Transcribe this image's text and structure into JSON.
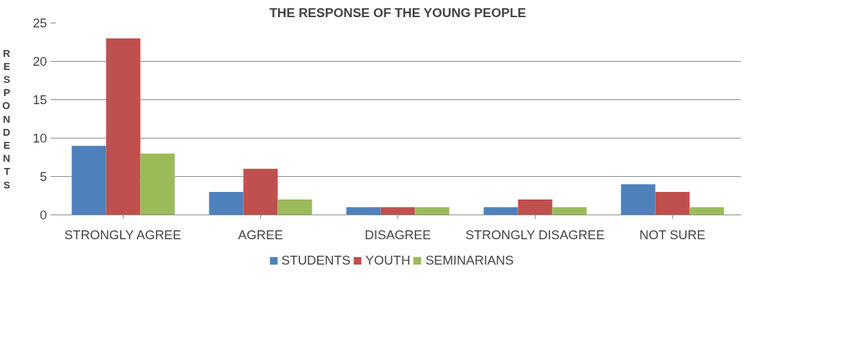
{
  "chart_data": {
    "type": "bar",
    "title": "THE RESPONSE OF THE YOUNG PEOPLE",
    "ylabel": "RESPONDENTS",
    "categories": [
      "STRONGLY AGREE",
      "AGREE",
      "DISAGREE",
      "STRONGLY DISAGREE",
      "NOT SURE"
    ],
    "series": [
      {
        "name": "STUDENTS",
        "color": "#4f81bd",
        "values": [
          9,
          3,
          1,
          1,
          4
        ]
      },
      {
        "name": "YOUTH",
        "color": "#c0504d",
        "values": [
          23,
          6,
          1,
          2,
          3
        ]
      },
      {
        "name": "SEMINARIANS",
        "color": "#9bbb59",
        "values": [
          8,
          2,
          1,
          1,
          1
        ]
      }
    ],
    "ylim": [
      0,
      25
    ],
    "yticks": [
      0,
      5,
      10,
      15,
      20,
      25
    ],
    "grid": "y",
    "legend": "bottom"
  }
}
